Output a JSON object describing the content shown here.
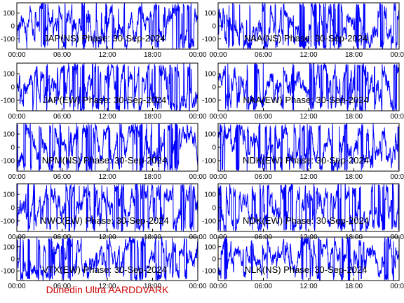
{
  "figure": {
    "footer": "Dunedin Ultra AARDDVARK",
    "colors": {
      "trace": "#0000ff",
      "frame": "#000000",
      "footer": "#cc0000",
      "background": "#ffffff"
    }
  },
  "chart_data": [
    {
      "type": "line",
      "title": "JAP(NS) Phase: 30-Sep-2024",
      "x_ticks": [
        "00:00",
        "06:00",
        "12:00",
        "18:00",
        "00:00"
      ],
      "y_ticks": [
        100,
        0,
        -100
      ],
      "ylim": [
        -180,
        180
      ],
      "xlim_hours": [
        0,
        24
      ],
      "grid": false,
      "series": [
        {
          "values": []
        }
      ]
    },
    {
      "type": "line",
      "title": "NAA(NS) Phase: 30-Sep-2024",
      "x_ticks": [
        "00:00",
        "06:00",
        "12:00",
        "18:00",
        "00:00"
      ],
      "y_ticks": [
        100,
        0,
        -100
      ],
      "ylim": [
        -180,
        180
      ],
      "xlim_hours": [
        0,
        24
      ],
      "grid": false,
      "series": [
        {
          "values": []
        }
      ]
    },
    {
      "type": "line",
      "title": "JAP(EW) Phase: 30-Sep-2024",
      "x_ticks": [
        "00:00",
        "06:00",
        "12:00",
        "18:00",
        "00:00"
      ],
      "y_ticks": [
        100,
        0,
        -100
      ],
      "ylim": [
        -180,
        180
      ],
      "xlim_hours": [
        0,
        24
      ],
      "grid": false,
      "series": [
        {
          "values": []
        }
      ]
    },
    {
      "type": "line",
      "title": "NAA(EW) Phase: 30-Sep-2024",
      "x_ticks": [
        "00:00",
        "06:00",
        "12:00",
        "18:00",
        "00:00"
      ],
      "y_ticks": [
        100,
        0,
        -100
      ],
      "ylim": [
        -180,
        180
      ],
      "xlim_hours": [
        0,
        24
      ],
      "grid": false,
      "series": [
        {
          "values": []
        }
      ]
    },
    {
      "type": "line",
      "title": "NPM(NS) Phase: 30-Sep-2024",
      "x_ticks": [
        "00:00",
        "06:00",
        "12:00",
        "18:00",
        "00:00"
      ],
      "y_ticks": [
        100,
        0,
        -100
      ],
      "ylim": [
        -180,
        180
      ],
      "xlim_hours": [
        0,
        24
      ],
      "grid": false,
      "series": [
        {
          "values": []
        }
      ]
    },
    {
      "type": "line",
      "title": "NDK(EW) Phase: 30-Sep-2024",
      "x_ticks": [
        "00:00",
        "06:00",
        "12:00",
        "18:00",
        "00:00"
      ],
      "y_ticks": [
        100,
        0,
        -100
      ],
      "ylim": [
        -180,
        180
      ],
      "xlim_hours": [
        0,
        24
      ],
      "grid": false,
      "series": [
        {
          "values": []
        }
      ]
    },
    {
      "type": "line",
      "title": "NWC(EW) Phase: 30-Sep-2024",
      "x_ticks": [
        "00:00",
        "06:00",
        "12:00",
        "18:00",
        "00:00"
      ],
      "y_ticks": [
        100,
        0,
        -100
      ],
      "ylim": [
        -180,
        180
      ],
      "xlim_hours": [
        0,
        24
      ],
      "grid": false,
      "series": [
        {
          "values": []
        }
      ]
    },
    {
      "type": "line",
      "title": "NDK(EW) Phase: 30-Sep-2024",
      "x_ticks": [
        "00:00",
        "06:00",
        "12:00",
        "18:00",
        "00:00"
      ],
      "y_ticks": [
        100,
        0,
        -100
      ],
      "ylim": [
        -180,
        180
      ],
      "xlim_hours": [
        0,
        24
      ],
      "grid": false,
      "series": [
        {
          "values": []
        }
      ]
    },
    {
      "type": "line",
      "title": "VTX(EW) Phase: 30-Sep-2024",
      "x_ticks": [
        "00:00",
        "06:00",
        "12:00",
        "18:00",
        "00:00"
      ],
      "y_ticks": [
        100,
        0,
        -100
      ],
      "ylim": [
        -180,
        180
      ],
      "xlim_hours": [
        0,
        24
      ],
      "grid": false,
      "series": [
        {
          "values": []
        }
      ]
    },
    {
      "type": "line",
      "title": "NLK(NS) Phase: 30-Sep-2024",
      "x_ticks": [
        "00:00",
        "06:00",
        "12:00",
        "18:00",
        "00:00"
      ],
      "y_ticks": [
        100,
        0,
        -100
      ],
      "ylim": [
        -180,
        180
      ],
      "xlim_hours": [
        0,
        24
      ],
      "grid": false,
      "series": [
        {
          "values": []
        }
      ]
    }
  ]
}
